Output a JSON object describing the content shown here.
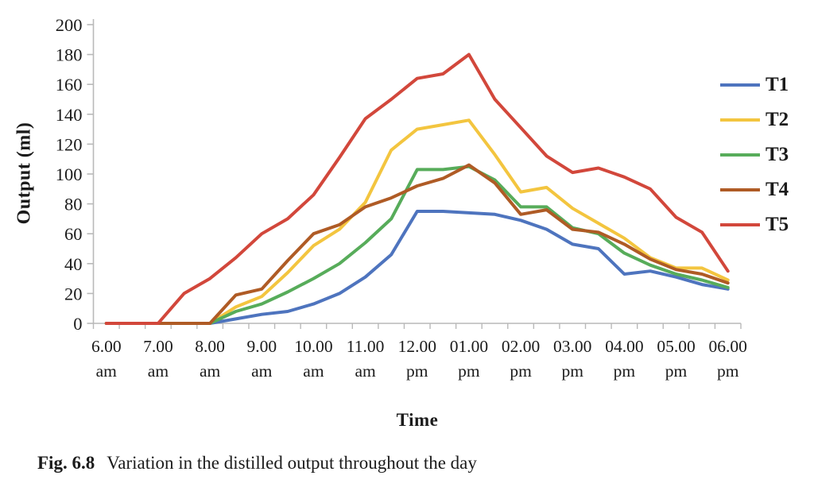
{
  "figure": {
    "caption_label": "Fig. 6.8",
    "caption_text": "Variation in the distilled output throughout the day"
  },
  "chart_data": {
    "type": "line",
    "title": "",
    "xlabel": "Time",
    "ylabel": "Output (ml)",
    "ylim": [
      0,
      200
    ],
    "y_tick_step": 20,
    "y_tick_labels": [
      "0",
      "20",
      "40",
      "60",
      "80",
      "100",
      "120",
      "140",
      "160",
      "180",
      "200"
    ],
    "grid": false,
    "legend_position": "right",
    "x_interval_minutes": 30,
    "categories": [
      "6.00 am",
      "6.30 am",
      "7.00 am",
      "7.30 am",
      "8.00 am",
      "8.30 am",
      "9.00 am",
      "9.30 am",
      "10.00 am",
      "10.30 am",
      "11.00 am",
      "11.30 am",
      "12.00 pm",
      "12.30 pm",
      "01.00 pm",
      "01.30 pm",
      "02.00 pm",
      "02.30 pm",
      "03.00 pm",
      "03.30 pm",
      "04.00 pm",
      "04.30 pm",
      "05.00 pm",
      "05.30 pm",
      "06.00 pm"
    ],
    "x_axis_labels": [
      {
        "time": "6.00",
        "period": "am"
      },
      {
        "time": "7.00",
        "period": "am"
      },
      {
        "time": "8.00",
        "period": "am"
      },
      {
        "time": "9.00",
        "period": "am"
      },
      {
        "time": "10.00",
        "period": "am"
      },
      {
        "time": "11.00",
        "period": "am"
      },
      {
        "time": "12.00",
        "period": "pm"
      },
      {
        "time": "01.00",
        "period": "pm"
      },
      {
        "time": "02.00",
        "period": "pm"
      },
      {
        "time": "03.00",
        "period": "pm"
      },
      {
        "time": "04.00",
        "period": "pm"
      },
      {
        "time": "05.00",
        "period": "pm"
      },
      {
        "time": "06.00",
        "period": "pm"
      }
    ],
    "series": [
      {
        "name": "T1",
        "color": "#4e74be",
        "values": [
          0,
          0,
          0,
          0,
          0,
          3,
          6,
          8,
          13,
          20,
          31,
          46,
          75,
          75,
          74,
          73,
          69,
          63,
          53,
          50,
          33,
          35,
          31,
          26,
          23
        ]
      },
      {
        "name": "T2",
        "color": "#f3c53f",
        "values": [
          0,
          0,
          0,
          0,
          0,
          11,
          18,
          34,
          52,
          63,
          81,
          116,
          130,
          133,
          136,
          113,
          88,
          91,
          77,
          67,
          57,
          44,
          37,
          37,
          29
        ]
      },
      {
        "name": "T3",
        "color": "#57ac5a",
        "values": [
          0,
          0,
          0,
          0,
          0,
          8,
          13,
          21,
          30,
          40,
          54,
          70,
          103,
          103,
          105,
          96,
          78,
          78,
          64,
          60,
          47,
          39,
          33,
          29,
          24
        ]
      },
      {
        "name": "T4",
        "color": "#af5b25",
        "values": [
          0,
          0,
          0,
          0,
          0,
          19,
          23,
          42,
          60,
          66,
          78,
          84,
          92,
          97,
          106,
          94,
          73,
          76,
          63,
          61,
          53,
          43,
          36,
          33,
          27
        ]
      },
      {
        "name": "T5",
        "color": "#d2473b",
        "values": [
          0,
          0,
          0,
          20,
          30,
          44,
          60,
          70,
          86,
          111,
          137,
          150,
          164,
          167,
          180,
          150,
          131,
          112,
          101,
          104,
          98,
          90,
          71,
          61,
          35
        ]
      }
    ],
    "axis_color": "#b9b9b9",
    "text_color": "#1b1b1b"
  }
}
